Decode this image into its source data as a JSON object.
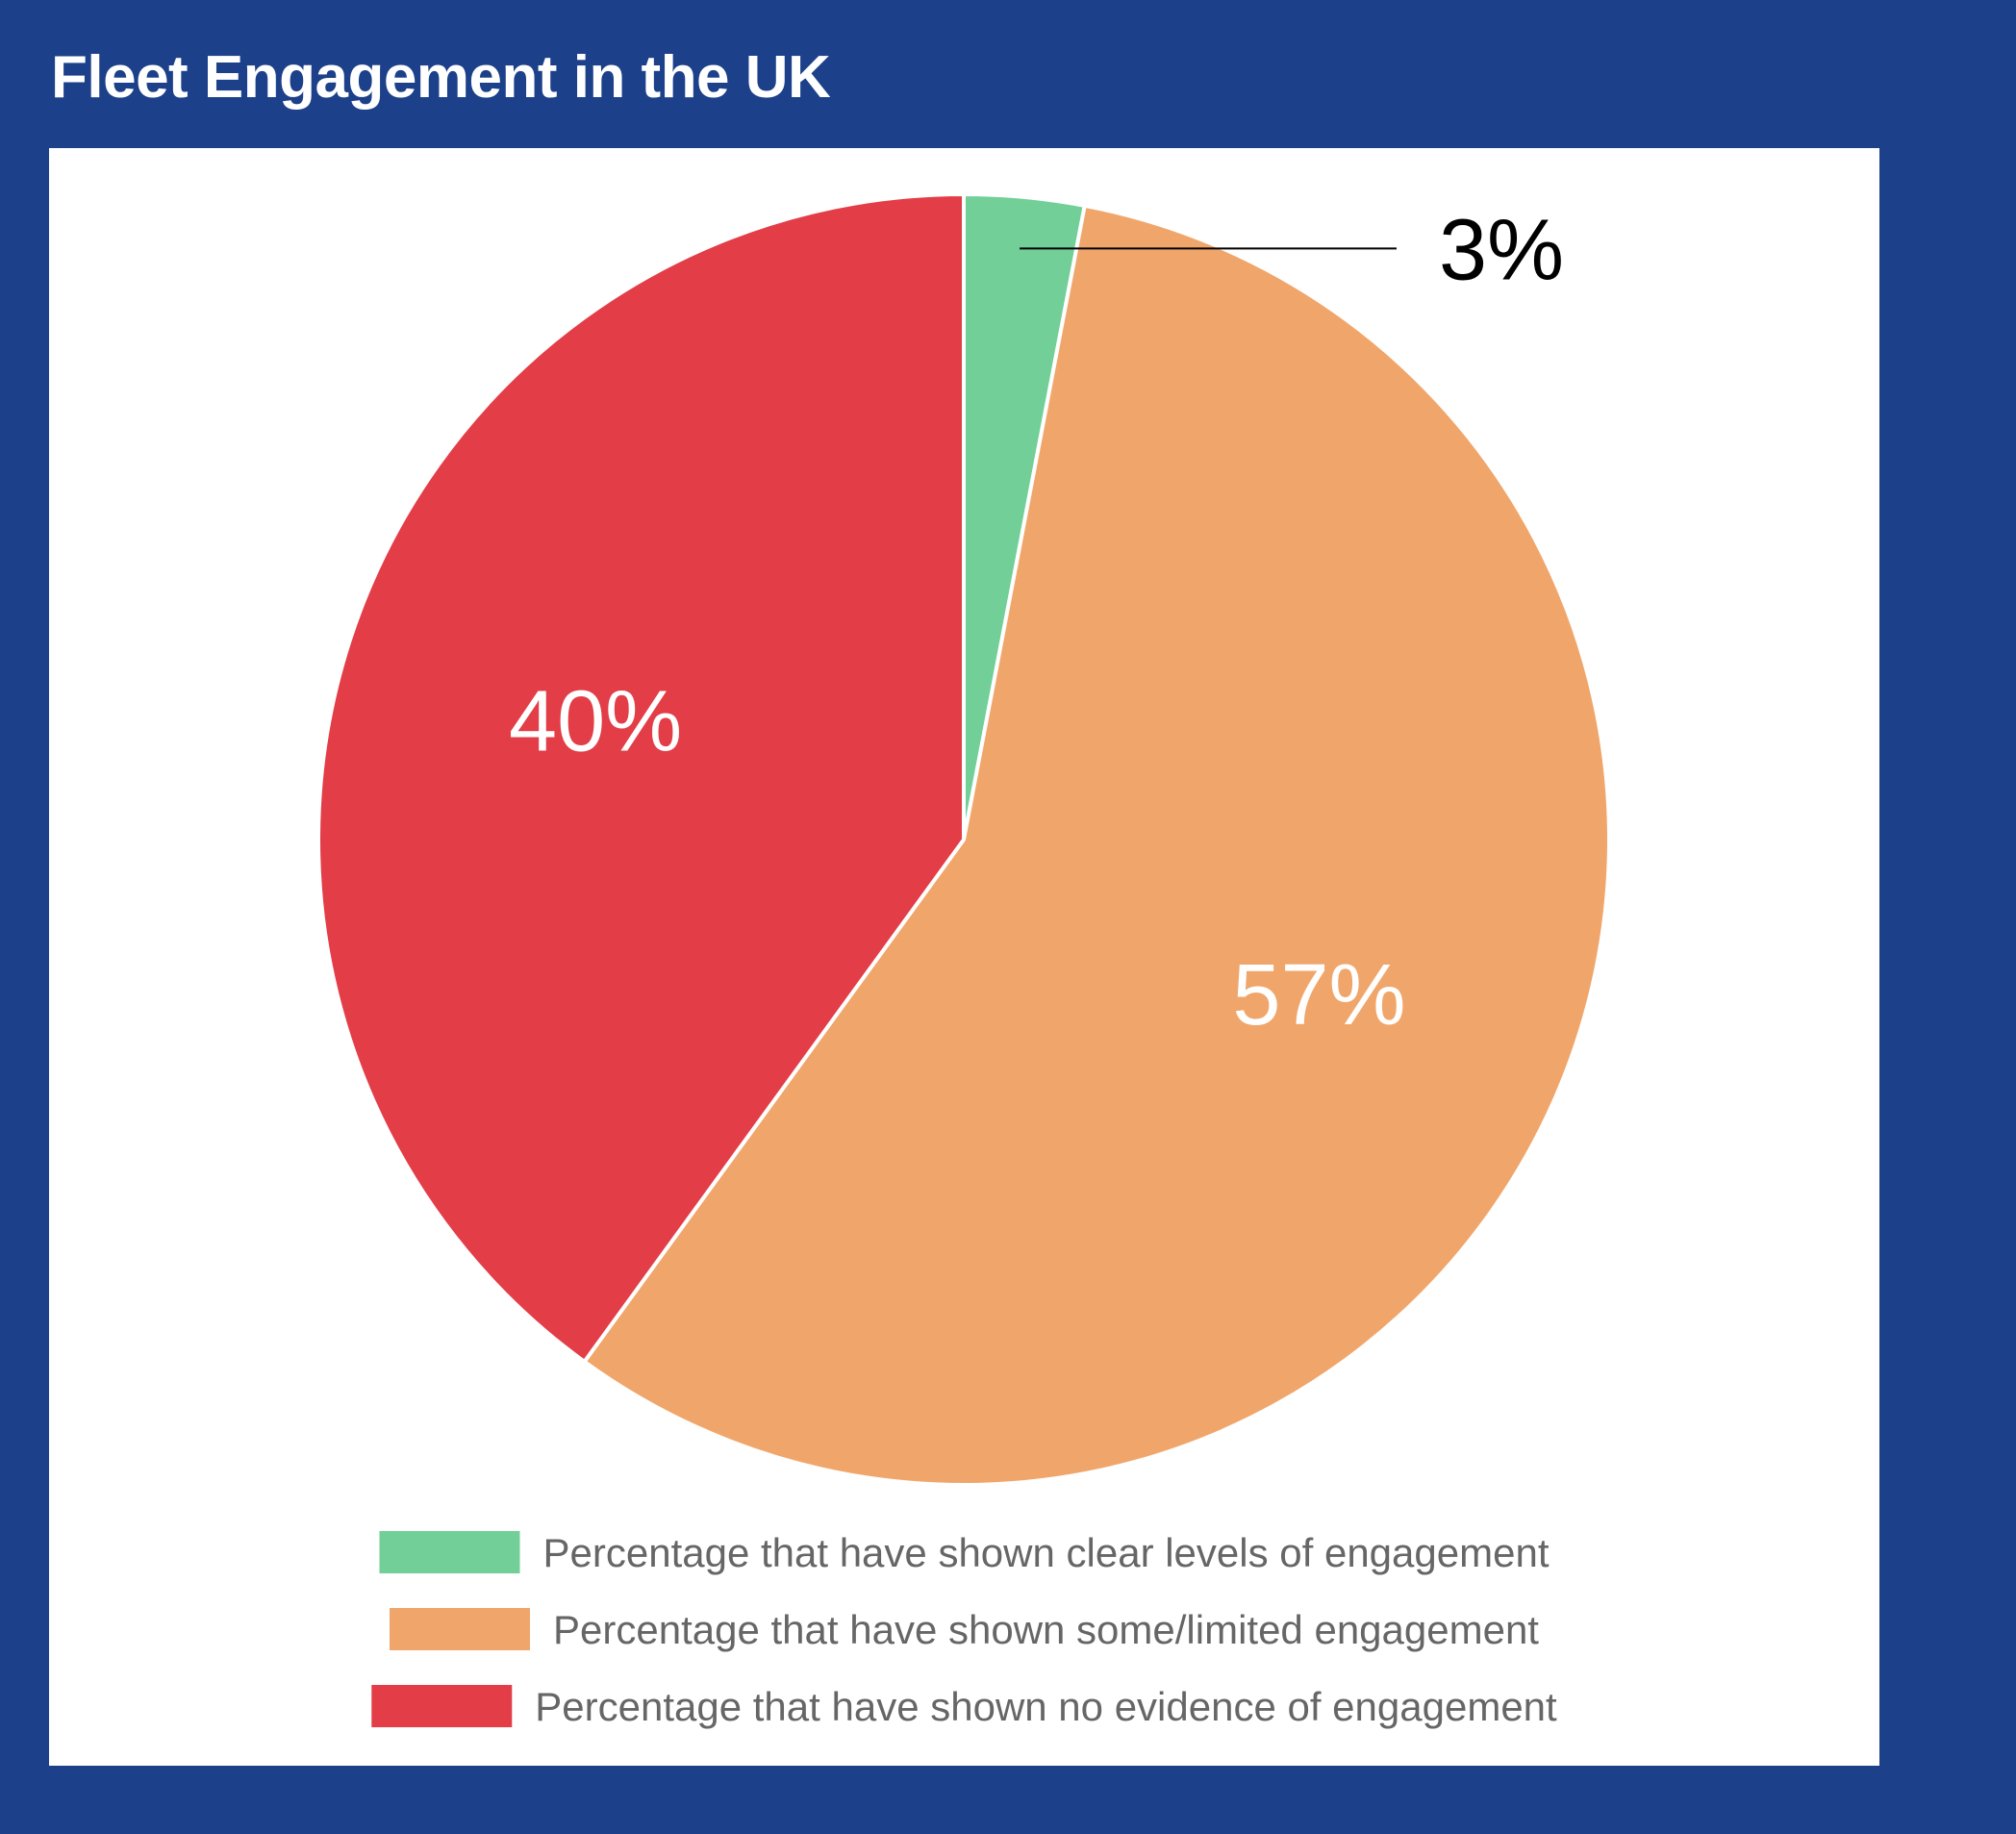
{
  "page": {
    "title": "Fleet Engagement in the UK"
  },
  "chart_data": {
    "type": "pie",
    "title": "Fleet Engagement in the UK",
    "start_angle": "12 o'clock",
    "direction": "clockwise",
    "legend_position": "bottom",
    "slices": [
      {
        "label": "Percentage that have shown clear levels of engagement",
        "value": 3,
        "display": "3%",
        "color": "#72cf98",
        "label_placement": "outside",
        "label_color": "#000000"
      },
      {
        "label": "Percentage that have shown some/limited engagement",
        "value": 57,
        "display": "57%",
        "color": "#f0a66b",
        "label_placement": "inside",
        "label_color": "#ffffff"
      },
      {
        "label": "Percentage that have shown no evidence of engagement",
        "value": 40,
        "display": "40%",
        "color": "#e33d47",
        "label_placement": "inside",
        "label_color": "#ffffff"
      }
    ]
  }
}
